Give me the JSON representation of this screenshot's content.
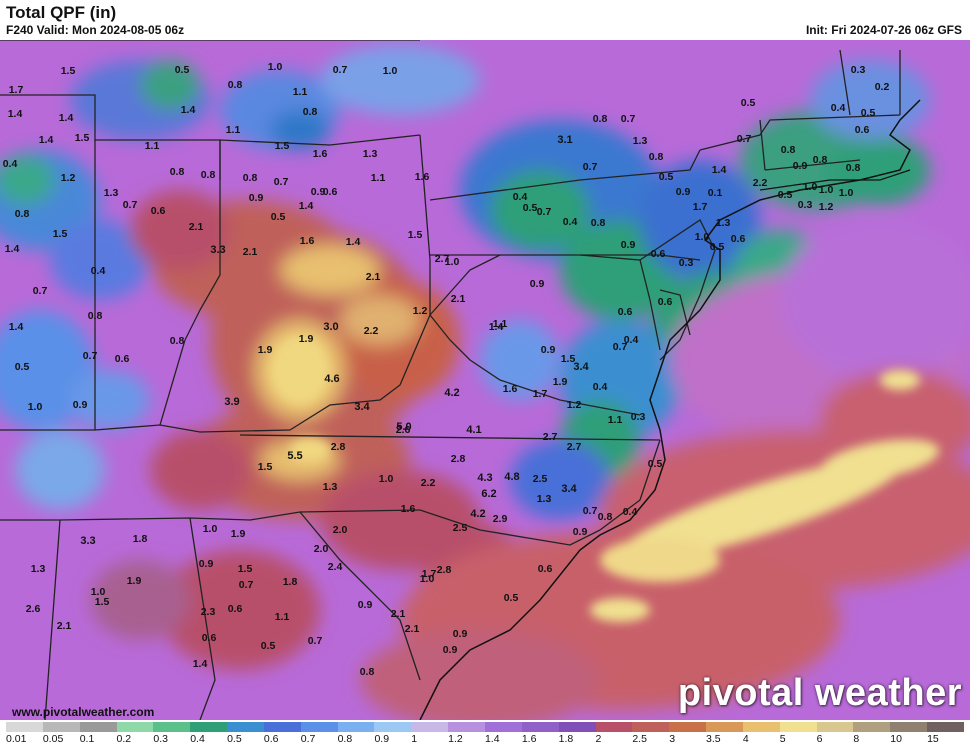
{
  "header": {
    "title": "Total QPF (in)",
    "valid": "F240 Valid: Mon 2024-08-05 06z",
    "init": "Init: Fri 2024-07-26 06z GFS"
  },
  "footer": {
    "url": "www.pivotalweather.com",
    "brand": "pivotal weather"
  },
  "legend": {
    "ticks": [
      "0.01",
      "0.05",
      "0.1",
      "0.2",
      "0.3",
      "0.4",
      "0.5",
      "0.6",
      "0.7",
      "0.8",
      "0.9",
      "1",
      "1.2",
      "1.4",
      "1.6",
      "1.8",
      "2",
      "2.5",
      "3",
      "3.5",
      "4",
      "5",
      "6",
      "8",
      "10",
      "15"
    ],
    "colors": [
      "#d8d8d8",
      "#b8b8b8",
      "#9a9a9a",
      "#8fd8a8",
      "#5cc08a",
      "#2f9f78",
      "#3a8fd0",
      "#4a6fd8",
      "#5a90e8",
      "#7ab0f0",
      "#9cc8f4",
      "#c8b8e8",
      "#b890e0",
      "#a070d8",
      "#9060c8",
      "#8050b8",
      "#b8506a",
      "#c0605a",
      "#c87048",
      "#d89858",
      "#e8c070",
      "#f0e090",
      "#d8c890",
      "#b0a080",
      "#908070",
      "#706060"
    ]
  },
  "precip_labels": [
    "1.7",
    "1.5",
    "1.4",
    "1.4",
    "1.4",
    "1.5",
    "0.4",
    "1.2",
    "1.3",
    "1.1",
    "0.8",
    "1.5",
    "1.4",
    "0.4",
    "0.7",
    "1.4",
    "0.8",
    "0.5",
    "0.6",
    "0.8",
    "0.7",
    "1.0",
    "0.9",
    "0.8",
    "0.7",
    "0.5",
    "0.8",
    "1.0",
    "1.1",
    "0.8",
    "0.7",
    "1.0",
    "1.1",
    "1.4",
    "1.5",
    "1.6",
    "1.3",
    "1.1",
    "0.9",
    "0.7",
    "0.8",
    "0.6",
    "0.8",
    "0.9",
    "1.4",
    "0.5",
    "0.6",
    "1.6",
    "2.1",
    "3.3",
    "2.1",
    "1.6",
    "1.4",
    "1.5",
    "1.0",
    "2.7",
    "2.1",
    "2.1",
    "3.0",
    "2.2",
    "1.2",
    "1.9",
    "1.9",
    "4.6",
    "3.4",
    "3.9",
    "4.2",
    "4.1",
    "2.6",
    "5.0",
    "5.5",
    "2.8",
    "1.5",
    "1.3",
    "1.0",
    "2.2",
    "2.8",
    "6.2",
    "4.3",
    "4.8",
    "4.2",
    "2.5",
    "2.7",
    "1.9",
    "1.2",
    "1.1",
    "1.4",
    "0.9",
    "0.9",
    "1.5",
    "1.6",
    "1.7",
    "3.4",
    "2.7",
    "3.4",
    "1.3",
    "2.9",
    "1.6",
    "2.5",
    "2.8",
    "2.1",
    "1.7",
    "2.1",
    "0.9",
    "2.0",
    "2.4",
    "2.0",
    "1.8",
    "1.1",
    "1.5",
    "1.0",
    "0.9",
    "2.3",
    "1.4",
    "1.9",
    "1.0",
    "2.1",
    "2.6",
    "1.5",
    "1.3",
    "3.3",
    "1.8",
    "1.9",
    "0.7",
    "0.6",
    "0.6",
    "0.5",
    "0.7",
    "0.8",
    "0.9",
    "1.0",
    "0.9",
    "0.5",
    "0.6",
    "0.9",
    "0.7",
    "0.8",
    "0.4",
    "0.5",
    "0.3",
    "1.1",
    "0.4",
    "0.7",
    "0.6",
    "0.4",
    "0.6",
    "0.3",
    "1.0",
    "1.3",
    "0.6",
    "0.5",
    "0.6",
    "0.9",
    "0.8",
    "0.4",
    "0.7",
    "0.4",
    "0.5",
    "0.7",
    "3.1",
    "0.8",
    "0.7",
    "1.3",
    "0.8",
    "0.5",
    "0.9",
    "1.7",
    "1.4",
    "0.5",
    "0.7",
    "0.8",
    "0.9",
    "1.0",
    "1.0",
    "0.8",
    "0.6",
    "0.5",
    "0.4",
    "0.3",
    "0.2",
    "0.1",
    "2.2",
    "0.5",
    "0.3",
    "1.2",
    "1.0",
    "0.8"
  ]
}
